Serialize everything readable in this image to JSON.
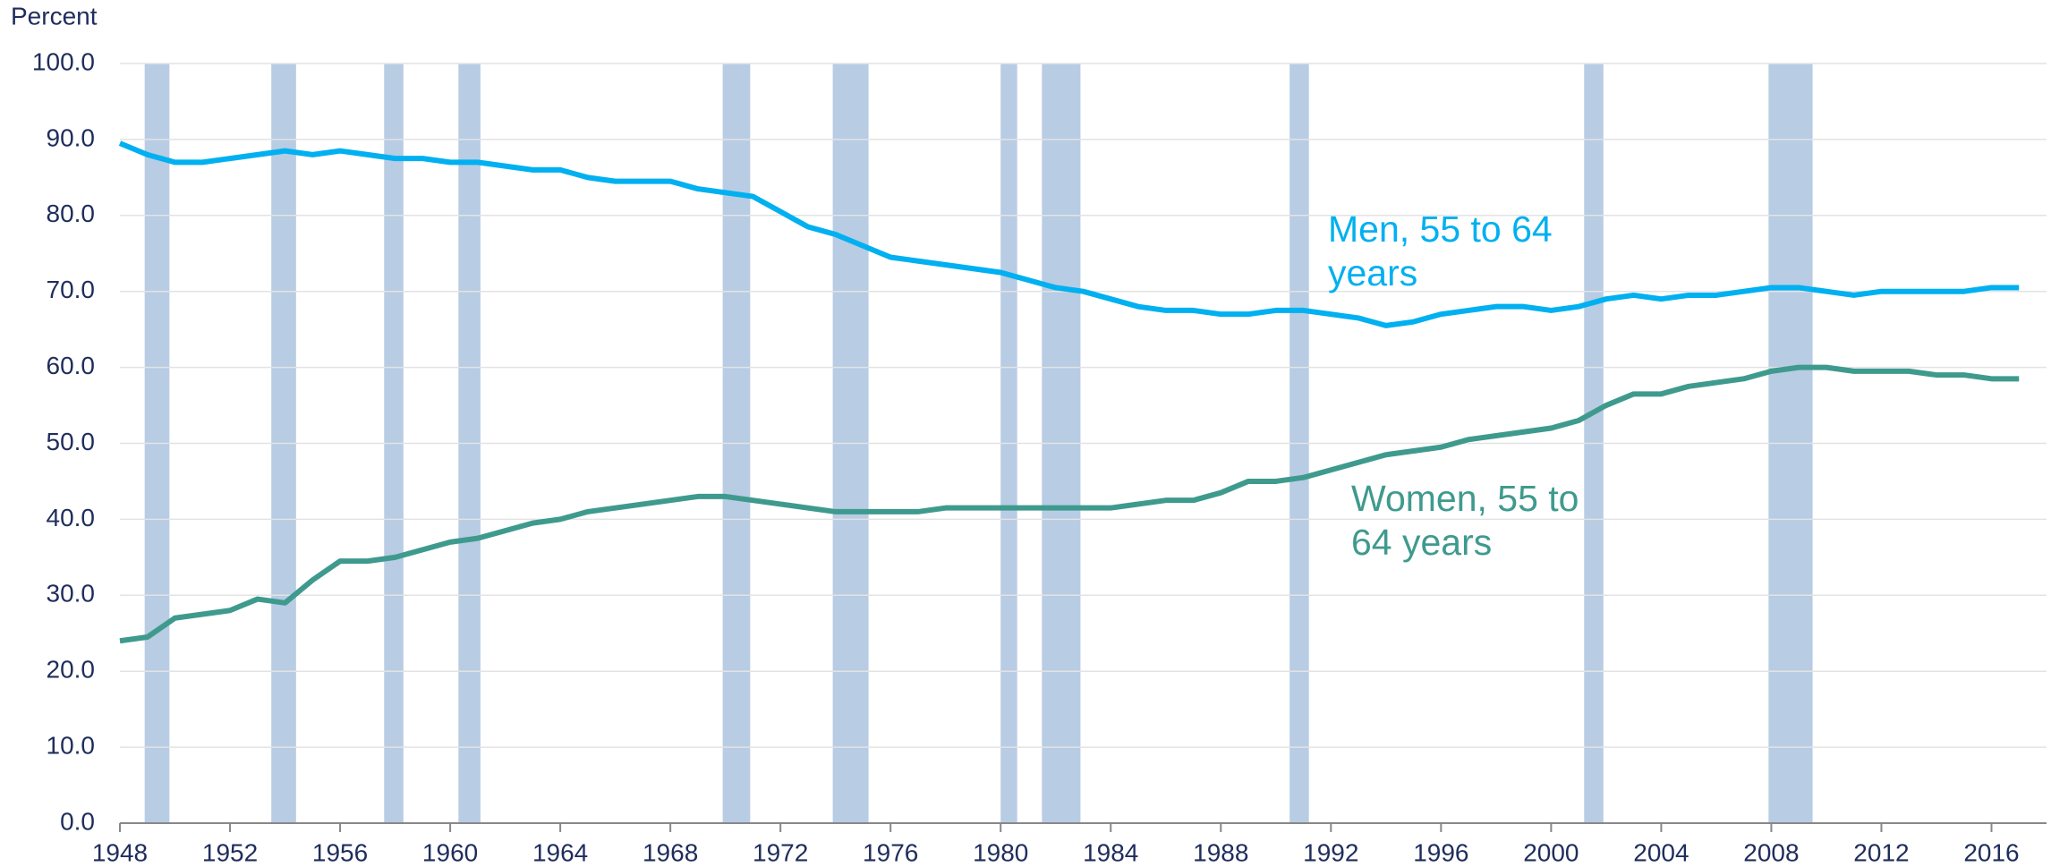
{
  "chart_data": {
    "type": "line",
    "y_axis_label": "Percent",
    "x": [
      1948,
      1949,
      1950,
      1951,
      1952,
      1953,
      1954,
      1955,
      1956,
      1957,
      1958,
      1959,
      1960,
      1961,
      1962,
      1963,
      1964,
      1965,
      1966,
      1967,
      1968,
      1969,
      1970,
      1971,
      1972,
      1973,
      1974,
      1975,
      1976,
      1977,
      1978,
      1979,
      1980,
      1981,
      1982,
      1983,
      1984,
      1985,
      1986,
      1987,
      1988,
      1989,
      1990,
      1991,
      1992,
      1993,
      1994,
      1995,
      1996,
      1997,
      1998,
      1999,
      2000,
      2001,
      2002,
      2003,
      2004,
      2005,
      2006,
      2007,
      2008,
      2009,
      2010,
      2011,
      2012,
      2013,
      2014,
      2015,
      2016,
      2017
    ],
    "series": [
      {
        "name": [
          "Men, 55 to 64",
          "years"
        ],
        "color": "#00b0f0",
        "values": [
          89.5,
          88,
          87,
          87,
          87.5,
          88,
          88.5,
          88,
          88.5,
          88,
          87.5,
          87.5,
          87,
          87,
          86.5,
          86,
          86,
          85,
          84.5,
          84.5,
          84.5,
          83.5,
          83,
          82.5,
          80.5,
          78.5,
          77.5,
          76,
          74.5,
          74,
          73.5,
          73,
          72.5,
          71.5,
          70.5,
          70,
          69,
          68,
          67.5,
          67.5,
          67,
          67,
          67.5,
          67.5,
          67,
          66.5,
          65.5,
          66,
          67,
          67.5,
          68,
          68,
          67.5,
          68,
          69,
          69.5,
          69,
          69.5,
          69.5,
          70,
          70.5,
          70.5,
          70,
          69.5,
          70,
          70,
          70,
          70,
          70.5,
          70.5
        ]
      },
      {
        "name": [
          "Women, 55 to",
          "64 years"
        ],
        "color": "#3f9a8e",
        "values": [
          24,
          24.5,
          27,
          27.5,
          28,
          29.5,
          29,
          32,
          34.5,
          34.5,
          35,
          36,
          37,
          37.5,
          38.5,
          39.5,
          40,
          41,
          41.5,
          42,
          42.5,
          43,
          43,
          42.5,
          42,
          41.5,
          41,
          41,
          41,
          41,
          41.5,
          41.5,
          41.5,
          41.5,
          41.5,
          41.5,
          41.5,
          42,
          42.5,
          42.5,
          43.5,
          45,
          45,
          45.5,
          46.5,
          47.5,
          48.5,
          49,
          49.5,
          50.5,
          51,
          51.5,
          52,
          53,
          55,
          56.5,
          56.5,
          57.5,
          58,
          58.5,
          59.5,
          60,
          60,
          59.5,
          59.5,
          59.5,
          59,
          59,
          58.5,
          58.5
        ]
      }
    ],
    "recessions": [
      [
        1948.9,
        1949.8
      ],
      [
        1953.5,
        1954.4
      ],
      [
        1957.6,
        1958.3
      ],
      [
        1960.3,
        1961.1
      ],
      [
        1969.9,
        1970.9
      ],
      [
        1973.9,
        1975.2
      ],
      [
        1980.0,
        1980.6
      ],
      [
        1981.5,
        1982.9
      ],
      [
        1990.5,
        1991.2
      ],
      [
        2001.2,
        2001.9
      ],
      [
        2007.9,
        2009.5
      ]
    ],
    "recession_color": "#b8cce4",
    "xlim": [
      1948,
      2018
    ],
    "xticks": [
      1948,
      1952,
      1956,
      1960,
      1964,
      1968,
      1972,
      1976,
      1980,
      1984,
      1988,
      1992,
      1996,
      2000,
      2004,
      2008,
      2012,
      2016
    ],
    "ylim": [
      0,
      100
    ],
    "yticks": [
      {
        "value": 0,
        "label": "0.0"
      },
      {
        "value": 10,
        "label": "10.0"
      },
      {
        "value": 20,
        "label": "20.0"
      },
      {
        "value": 30,
        "label": "30.0"
      },
      {
        "value": 40,
        "label": "40.0"
      },
      {
        "value": 50,
        "label": "50.0"
      },
      {
        "value": 60,
        "label": "60.0"
      },
      {
        "value": 70,
        "label": "70.0"
      },
      {
        "value": 80,
        "label": "80.0"
      },
      {
        "value": 90,
        "label": "90.0"
      },
      {
        "value": 100,
        "label": "100.0"
      }
    ],
    "grid": true
  }
}
